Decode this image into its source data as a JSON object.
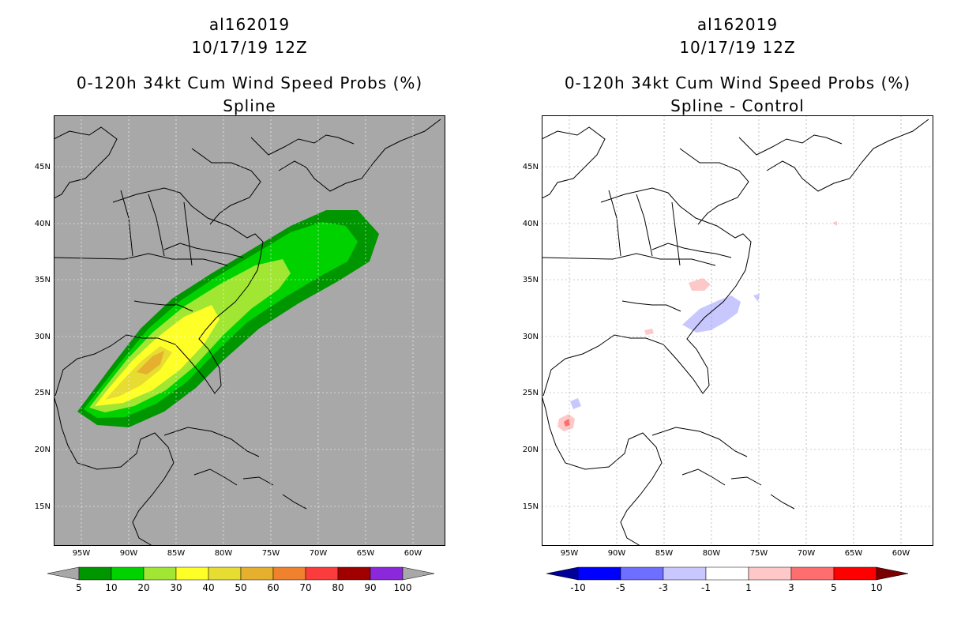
{
  "panels": [
    {
      "id": "left",
      "storm_id": "al162019",
      "datetime": "10/17/19 12Z",
      "title": "0-120h 34kt Cum Wind Speed Probs (%)",
      "subtitle": "Spline",
      "background": "#a8a8a8",
      "colorbar": {
        "labels": [
          "5",
          "10",
          "20",
          "30",
          "40",
          "50",
          "60",
          "70",
          "80",
          "90",
          "100"
        ],
        "colors": [
          "#009600",
          "#00d200",
          "#a0e632",
          "#ffff28",
          "#e6dc32",
          "#e6af2d",
          "#f0822d",
          "#fa3c3c",
          "#a00000",
          "#8c28dc"
        ],
        "under_color": "#a8a8a8",
        "over_color": "#a8a8a8"
      }
    },
    {
      "id": "right",
      "storm_id": "al162019",
      "datetime": "10/17/19 12Z",
      "title": "0-120h 34kt Cum Wind Speed Probs (%)",
      "subtitle": "Spline - Control",
      "background": "#ffffff",
      "colorbar": {
        "labels": [
          "-10",
          "-5",
          "-3",
          "-1",
          "1",
          "3",
          "5",
          "10"
        ],
        "colors": [
          "#0000ff",
          "#6e6eff",
          "#c8c8ff",
          "#ffffff",
          "#ffc8c8",
          "#ff6e6e",
          "#ff0000"
        ],
        "under_color": "#000096",
        "over_color": "#780000"
      }
    }
  ],
  "axes": {
    "lon_labels": [
      "95W",
      "90W",
      "85W",
      "80W",
      "75W",
      "70W",
      "65W",
      "60W"
    ],
    "lon_values": [
      -95,
      -90,
      -85,
      -80,
      -75,
      -70,
      -65,
      -60
    ],
    "lat_labels": [
      "15N",
      "20N",
      "25N",
      "30N",
      "35N",
      "40N",
      "45N"
    ],
    "lat_values": [
      15,
      20,
      25,
      30,
      35,
      40,
      45
    ],
    "lon_range": [
      -98,
      -56
    ],
    "lat_range": [
      11.5,
      49.5
    ]
  }
}
